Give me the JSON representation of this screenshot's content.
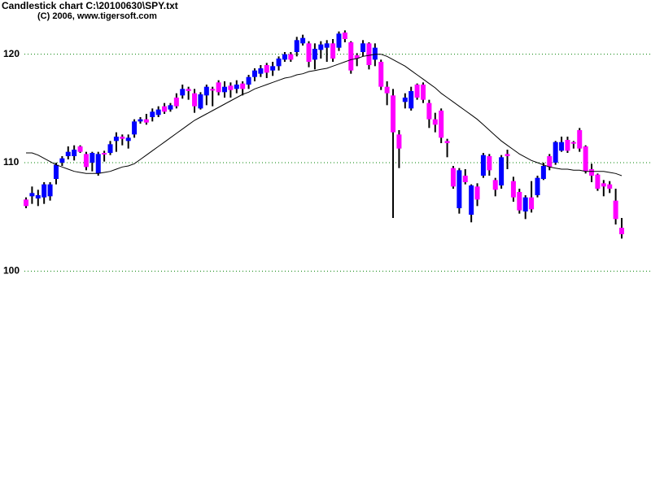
{
  "chart_data": {
    "type": "candlestick",
    "title": "Candlestick chart C:\\20100630\\SPY.txt",
    "subtitle": "(C) 2006, www.tigersoft.com",
    "open": [
      106.6,
      106.9,
      106.7,
      106.8,
      106.9,
      108.5,
      110.0,
      110.6,
      110.6,
      111.5,
      110.8,
      110.0,
      109.0,
      110.9,
      110.9,
      112.0,
      112.4,
      112.0,
      112.6,
      113.8,
      114.0,
      114.2,
      114.4,
      115.2,
      114.9,
      116.0,
      116.2,
      116.8,
      116.4,
      115.0,
      116.2,
      116.8,
      117.4,
      116.5,
      117.1,
      116.8,
      117.3,
      117.2,
      117.9,
      118.2,
      119.0,
      118.5,
      118.9,
      119.5,
      120.0,
      120.2,
      121.0,
      121.0,
      119.5,
      120.4,
      120.6,
      121.0,
      120.6,
      122.0,
      121.1,
      119.9,
      120.2,
      121.0,
      119.5,
      119.3,
      117.0,
      116.2,
      112.6,
      115.6,
      115.0,
      117.2,
      117.2,
      115.5,
      114.0,
      114.8,
      112.0,
      109.5,
      105.8,
      108.8,
      105.2,
      107.8,
      108.8,
      110.6,
      108.4,
      107.9,
      110.8,
      108.3,
      107.3,
      105.5,
      106.8,
      107.0,
      108.5,
      110.6,
      110.0,
      111.1,
      112.1,
      111.9,
      113.0,
      111.5,
      109.4,
      108.9,
      108.1,
      108.0,
      106.5,
      104.0
    ],
    "high": [
      106.8,
      107.8,
      107.5,
      108.2,
      108.2,
      110.0,
      110.6,
      111.5,
      111.6,
      111.6,
      111.0,
      111.0,
      111.0,
      111.1,
      112.0,
      112.8,
      112.6,
      112.6,
      114.0,
      114.2,
      114.5,
      115.0,
      115.2,
      115.5,
      115.5,
      116.4,
      117.2,
      117.0,
      116.8,
      116.5,
      117.2,
      117.0,
      117.6,
      117.5,
      117.4,
      117.6,
      117.5,
      118.1,
      118.7,
      119.0,
      119.2,
      119.3,
      119.8,
      120.2,
      120.2,
      121.6,
      121.8,
      121.2,
      121.0,
      121.2,
      121.3,
      121.4,
      122.1,
      122.2,
      121.2,
      120.1,
      121.3,
      121.1,
      121.0,
      119.5,
      117.5,
      116.8,
      113.0,
      116.4,
      117.0,
      117.3,
      117.4,
      115.8,
      114.6,
      115.0,
      112.2,
      109.7,
      109.5,
      109.4,
      108.0,
      108.1,
      110.9,
      110.8,
      108.6,
      110.7,
      111.2,
      108.7,
      107.6,
      107.0,
      108.3,
      108.8,
      110.0,
      110.8,
      112.0,
      112.4,
      112.4,
      112.0,
      113.2,
      111.6,
      109.9,
      109.0,
      108.4,
      108.3,
      107.6,
      104.9
    ],
    "low": [
      105.8,
      106.2,
      106.0,
      106.2,
      106.5,
      108.0,
      109.7,
      110.3,
      110.2,
      110.9,
      109.3,
      109.2,
      108.8,
      110.1,
      110.7,
      111.0,
      111.6,
      111.3,
      112.3,
      113.6,
      113.5,
      113.8,
      114.2,
      114.5,
      114.7,
      115.0,
      115.9,
      115.8,
      114.6,
      114.9,
      115.3,
      115.2,
      116.2,
      116.0,
      116.0,
      116.4,
      116.2,
      116.8,
      117.5,
      117.9,
      117.8,
      118.0,
      118.5,
      119.3,
      119.3,
      119.8,
      120.8,
      118.8,
      118.6,
      119.6,
      119.3,
      119.3,
      120.3,
      121.1,
      118.2,
      118.9,
      119.8,
      118.6,
      118.9,
      116.7,
      115.3,
      104.9,
      109.5,
      115.0,
      114.8,
      115.8,
      115.5,
      113.2,
      112.8,
      111.8,
      110.5,
      107.6,
      105.3,
      108.0,
      104.5,
      106.0,
      108.6,
      108.8,
      106.9,
      107.6,
      109.4,
      106.4,
      105.3,
      104.8,
      105.4,
      106.8,
      108.4,
      109.3,
      109.8,
      111.0,
      110.9,
      111.3,
      111.0,
      109.0,
      108.2,
      107.4,
      106.9,
      107.2,
      104.3,
      103.0
    ],
    "close": [
      106.0,
      107.2,
      107.0,
      108.0,
      108.0,
      109.8,
      110.4,
      111.0,
      111.2,
      111.0,
      109.6,
      110.9,
      110.8,
      110.8,
      111.7,
      112.4,
      112.2,
      112.3,
      113.8,
      114.0,
      113.7,
      114.7,
      114.9,
      114.7,
      115.3,
      115.2,
      116.8,
      116.6,
      115.2,
      116.3,
      117.0,
      116.7,
      116.5,
      117.0,
      116.7,
      117.2,
      116.8,
      117.9,
      118.5,
      118.7,
      118.3,
      118.9,
      119.6,
      120.0,
      119.5,
      121.3,
      121.5,
      119.3,
      120.5,
      120.9,
      121.0,
      119.6,
      121.9,
      121.4,
      118.5,
      119.6,
      121.0,
      119.0,
      120.6,
      117.0,
      116.4,
      112.8,
      111.3,
      116.0,
      116.6,
      116.0,
      115.8,
      114.0,
      113.5,
      112.3,
      111.8,
      107.8,
      109.3,
      108.2,
      107.9,
      106.6,
      110.7,
      109.3,
      107.5,
      110.5,
      110.6,
      106.8,
      105.6,
      106.8,
      105.7,
      108.6,
      109.7,
      109.6,
      111.9,
      111.9,
      111.1,
      111.8,
      111.3,
      109.2,
      108.8,
      107.6,
      107.8,
      107.6,
      104.8,
      103.4
    ],
    "ma": {
      "color": "#000000",
      "values": [
        110.9,
        110.9,
        110.7,
        110.4,
        110.1,
        109.8,
        109.6,
        109.4,
        109.2,
        109.1,
        109.0,
        109.0,
        109.0,
        109.1,
        109.2,
        109.4,
        109.6,
        109.7,
        109.9,
        110.3,
        110.7,
        111.1,
        111.5,
        111.9,
        112.3,
        112.7,
        113.1,
        113.5,
        113.9,
        114.2,
        114.5,
        114.8,
        115.1,
        115.4,
        115.7,
        116.0,
        116.3,
        116.5,
        116.8,
        117.0,
        117.2,
        117.4,
        117.6,
        117.8,
        117.9,
        118.1,
        118.2,
        118.4,
        118.5,
        118.6,
        118.7,
        118.9,
        119.1,
        119.3,
        119.5,
        119.6,
        119.8,
        119.9,
        120.0,
        120.0,
        119.8,
        119.5,
        119.2,
        118.9,
        118.5,
        118.1,
        117.7,
        117.3,
        116.9,
        116.4,
        116.0,
        115.6,
        115.2,
        114.8,
        114.4,
        114.0,
        113.5,
        113.0,
        112.5,
        112.0,
        111.6,
        111.2,
        110.8,
        110.5,
        110.2,
        110.0,
        109.8,
        109.6,
        109.5,
        109.4,
        109.4,
        109.3,
        109.3,
        109.2,
        109.2,
        109.2,
        109.2,
        109.1,
        109.0,
        108.8
      ]
    },
    "up_color": "#0000ff",
    "down_color": "#ff00ff",
    "wick_color": "#000000",
    "ylim": [
      80,
      125
    ],
    "yticks": [
      100,
      110,
      120
    ],
    "grid": true,
    "grid_color": "#008000"
  }
}
